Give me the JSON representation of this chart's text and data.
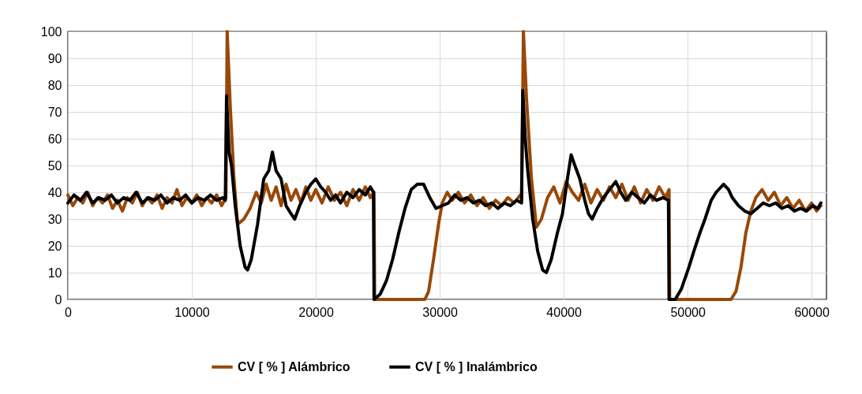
{
  "chart_data": {
    "type": "line",
    "xlim": [
      0,
      61200
    ],
    "xticks": [
      0,
      10000,
      20000,
      30000,
      40000,
      50000,
      60000
    ],
    "ylim": [
      0,
      100
    ],
    "yticks": [
      0,
      10,
      20,
      30,
      40,
      50,
      60,
      70,
      80,
      90,
      100
    ],
    "grid": true,
    "legend": "bottom",
    "marker": "none",
    "line_style": "solid",
    "series": [
      {
        "name": "CV [ % ] Alámbrico",
        "color": "#984807",
        "x": [
          0,
          400,
          800,
          1200,
          1600,
          2000,
          2400,
          2800,
          3200,
          3600,
          4000,
          4400,
          4800,
          5200,
          5600,
          6000,
          6400,
          6800,
          7200,
          7600,
          8000,
          8400,
          8800,
          9200,
          9600,
          10000,
          10400,
          10800,
          11200,
          11600,
          12000,
          12400,
          12750,
          12850,
          13100,
          13400,
          13700,
          14200,
          14700,
          15200,
          15600,
          16000,
          16400,
          16800,
          17200,
          17600,
          18000,
          18400,
          18800,
          19200,
          19600,
          20000,
          20500,
          21000,
          21500,
          22000,
          22500,
          23000,
          23500,
          24000,
          24400,
          24700,
          24750,
          26000,
          27500,
          28800,
          29100,
          29500,
          29900,
          30200,
          30600,
          31000,
          31500,
          32000,
          32500,
          33000,
          33500,
          34000,
          34500,
          35000,
          35500,
          36000,
          36500,
          36600,
          36750,
          37000,
          37400,
          37800,
          38200,
          38700,
          39200,
          39700,
          40200,
          40700,
          41200,
          41700,
          42200,
          42700,
          43200,
          43700,
          44200,
          44700,
          45200,
          45700,
          46200,
          46700,
          47200,
          47700,
          48200,
          48500,
          48550,
          50000,
          52000,
          53500,
          53900,
          54300,
          54700,
          55100,
          55500,
          56000,
          56500,
          57000,
          57500,
          58000,
          58500,
          59000,
          59500,
          60000,
          60400,
          60750
        ],
        "values": [
          39,
          35,
          38,
          36,
          40,
          35,
          38,
          36,
          39,
          34,
          37,
          33,
          38,
          36,
          40,
          35,
          38,
          36,
          39,
          34,
          38,
          36,
          41,
          35,
          38,
          36,
          39,
          35,
          38,
          36,
          39,
          35,
          38,
          100,
          72,
          45,
          28,
          30,
          34,
          40,
          36,
          43,
          37,
          42,
          35,
          43,
          37,
          41,
          36,
          42,
          37,
          41,
          36,
          42,
          37,
          40,
          35,
          41,
          37,
          42,
          38,
          40,
          0,
          0,
          0,
          0,
          3,
          15,
          28,
          36,
          40,
          37,
          40,
          36,
          39,
          35,
          38,
          34,
          37,
          35,
          38,
          36,
          39,
          38,
          100,
          75,
          45,
          27,
          30,
          38,
          42,
          36,
          44,
          40,
          37,
          43,
          36,
          41,
          37,
          42,
          38,
          43,
          37,
          42,
          36,
          41,
          37,
          42,
          38,
          41,
          0,
          0,
          0,
          0,
          3,
          12,
          25,
          33,
          38,
          41,
          37,
          40,
          35,
          38,
          34,
          37,
          33,
          36,
          33,
          35
        ]
      },
      {
        "name": "CV [ % ] Inalámbrico",
        "color": "#000000",
        "x": [
          0,
          500,
          1000,
          1500,
          2000,
          2500,
          3000,
          3500,
          4000,
          4500,
          5000,
          5500,
          6000,
          6500,
          7000,
          7500,
          8000,
          8500,
          9000,
          9500,
          10000,
          10500,
          11000,
          11500,
          12000,
          12500,
          12700,
          12800,
          13000,
          13200,
          13500,
          13900,
          14300,
          14500,
          14800,
          15300,
          15800,
          16200,
          16500,
          16800,
          17200,
          17600,
          18000,
          18300,
          18700,
          19200,
          19600,
          20000,
          20400,
          20800,
          21200,
          21600,
          22000,
          22500,
          23000,
          23500,
          24000,
          24400,
          24650,
          24700,
          25200,
          25700,
          26200,
          26700,
          27200,
          27700,
          28200,
          28700,
          29200,
          29700,
          30200,
          30700,
          31200,
          31700,
          32200,
          32700,
          33200,
          33700,
          34200,
          34700,
          35200,
          35700,
          36200,
          36600,
          36700,
          36900,
          37100,
          37500,
          37900,
          38300,
          38600,
          39000,
          39500,
          39900,
          40300,
          40600,
          40900,
          41300,
          41700,
          42000,
          42300,
          42700,
          43200,
          43700,
          44200,
          44600,
          45000,
          45500,
          46000,
          46500,
          47000,
          47500,
          48000,
          48450,
          48500,
          49000,
          49500,
          50100,
          50500,
          51000,
          51400,
          51900,
          52300,
          52900,
          53300,
          53600,
          54100,
          54600,
          55100,
          55600,
          56100,
          56600,
          57100,
          57600,
          58100,
          58600,
          59100,
          59600,
          60100,
          60500,
          60750
        ],
        "values": [
          36,
          39,
          37,
          40,
          36,
          38,
          37,
          39,
          36,
          38,
          37,
          40,
          36,
          38,
          37,
          39,
          36,
          38,
          37,
          39,
          36,
          38,
          37,
          39,
          37,
          38,
          37,
          76,
          55,
          50,
          35,
          20,
          12,
          11,
          15,
          28,
          45,
          48,
          55,
          48,
          45,
          35,
          32,
          30,
          35,
          40,
          43,
          45,
          42,
          40,
          37,
          39,
          36,
          40,
          38,
          41,
          39,
          42,
          40,
          0,
          2,
          7,
          15,
          25,
          34,
          41,
          43,
          43,
          38,
          34,
          35,
          36,
          39,
          37,
          38,
          36,
          37,
          35,
          36,
          34,
          36,
          35,
          37,
          36,
          78,
          60,
          48,
          30,
          18,
          11,
          10,
          15,
          25,
          32,
          45,
          54,
          50,
          45,
          37,
          32,
          30,
          34,
          38,
          41,
          44,
          40,
          37,
          40,
          38,
          36,
          39,
          37,
          38,
          37,
          0,
          0,
          4,
          12,
          18,
          25,
          30,
          37,
          40,
          43,
          41,
          38,
          35,
          33,
          32,
          34,
          36,
          35,
          36,
          34,
          35,
          33,
          34,
          33,
          35,
          34,
          36
        ]
      }
    ]
  }
}
